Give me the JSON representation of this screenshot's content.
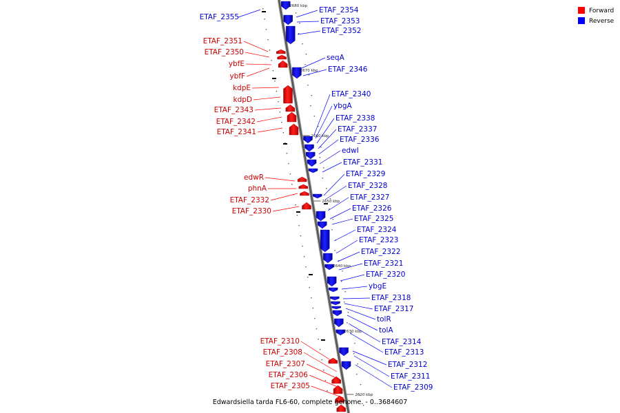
{
  "caption": "Edwardsiella tarda FL6-60, complete genome. - 0..3684607",
  "legend": [
    {
      "label": "Forward",
      "color": "#ff0000"
    },
    {
      "label": "Reverse",
      "color": "#0000ff"
    }
  ],
  "colors": {
    "forward": "#ff0000",
    "reverse": "#0000ff",
    "backbone": "#555555"
  },
  "ticks": [
    "2680 kbp",
    "2670 kbp",
    "2660 kbp",
    "2650 kbp",
    "2640 kbp",
    "2630 kbp",
    "2620 kbp"
  ],
  "forward_genes": [
    "ETAF_2351",
    "ETAF_2350",
    "ybfE",
    "ybfF",
    "kdpE",
    "kdpD",
    "ETAF_2343",
    "ETAF_2342",
    "ETAF_2341",
    "edwR",
    "phnA",
    "ETAF_2332",
    "ETAF_2330",
    "ETAF_2310",
    "ETAF_2308",
    "ETAF_2307",
    "ETAF_2306",
    "ETAF_2305"
  ],
  "reverse_genes": [
    "ETAF_2355",
    "ETAF_2354",
    "ETAF_2353",
    "ETAF_2352",
    "seqA",
    "ETAF_2346",
    "ETAF_2340",
    "ybgA",
    "ETAF_2338",
    "ETAF_2337",
    "ETAF_2336",
    "edwI",
    "ETAF_2331",
    "ETAF_2329",
    "ETAF_2328",
    "ETAF_2327",
    "ETAF_2326",
    "ETAF_2325",
    "ETAF_2324",
    "ETAF_2323",
    "ETAF_2322",
    "ETAF_2321",
    "ETAF_2320",
    "ybgE",
    "ETAF_2318",
    "ETAF_2317",
    "tolR",
    "tolA",
    "ETAF_2314",
    "ETAF_2313",
    "ETAF_2312",
    "ETAF_2311",
    "ETAF_2309"
  ]
}
